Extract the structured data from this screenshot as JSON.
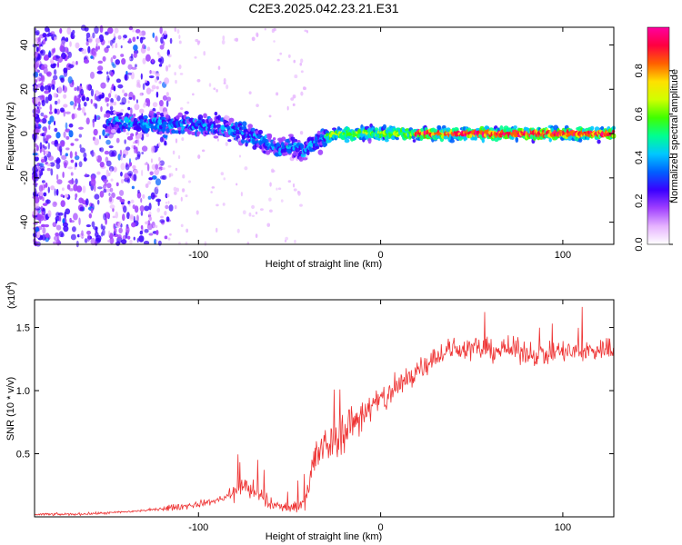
{
  "title": "C2E3.2025.042.23.21.E31",
  "chart_data": [
    {
      "type": "heatmap",
      "xlabel": "Height of straight line (km)",
      "ylabel": "Frequency (Hz)",
      "xlim": [
        -190,
        128
      ],
      "ylim": [
        -50,
        48
      ],
      "xticks": [
        "-100",
        "0",
        "100"
      ],
      "yticks": [
        "-40",
        "-20",
        "0",
        "20",
        "40"
      ],
      "colorbar": {
        "label": "Normalized spectral amplitude",
        "range": [
          0,
          1
        ],
        "ticks": [
          "0.0",
          "0.2",
          "0.4",
          "0.6",
          "0.8"
        ],
        "colors": [
          "#ffffff",
          "#e6b3ff",
          "#a040ff",
          "#3a00ff",
          "#0060ff",
          "#00c8ff",
          "#00ff90",
          "#40ff00",
          "#d0ff00",
          "#ffe000",
          "#ff6000",
          "#ff0040",
          "#ff00a0"
        ]
      },
      "ridge": [
        {
          "x": -140,
          "y": 5
        },
        {
          "x": -120,
          "y": 4
        },
        {
          "x": -100,
          "y": 4
        },
        {
          "x": -85,
          "y": 3
        },
        {
          "x": -75,
          "y": 0
        },
        {
          "x": -65,
          "y": -3
        },
        {
          "x": -55,
          "y": -7
        },
        {
          "x": -48,
          "y": -6
        },
        {
          "x": -42,
          "y": -8
        },
        {
          "x": -35,
          "y": -3
        },
        {
          "x": -25,
          "y": 0
        },
        {
          "x": 0,
          "y": 0
        },
        {
          "x": 50,
          "y": 0
        },
        {
          "x": 100,
          "y": 0
        },
        {
          "x": 128,
          "y": 0
        }
      ]
    },
    {
      "type": "line",
      "xlabel": "Height of straight line (km)",
      "ylabel": "SNR (10 * v/v)",
      "yscale_label": "(x10",
      "yscale_exp": "4",
      "xlim": [
        -190,
        128
      ],
      "ylim": [
        0,
        1.72
      ],
      "xticks": [
        "-100",
        "0",
        "100"
      ],
      "yticks": [
        "0.5",
        "1.0",
        "1.5"
      ],
      "series": [
        {
          "color": "#ee3333",
          "x": [
            -190,
            -170,
            -150,
            -130,
            -110,
            -100,
            -90,
            -80,
            -75,
            -70,
            -65,
            -60,
            -55,
            -50,
            -45,
            -40,
            -38,
            -35,
            -30,
            -25,
            -20,
            -15,
            -10,
            -5,
            0,
            5,
            10,
            15,
            20,
            25,
            30,
            35,
            40,
            50,
            60,
            70,
            80,
            90,
            100,
            110,
            120,
            128
          ],
          "y": [
            0.02,
            0.02,
            0.03,
            0.05,
            0.08,
            0.1,
            0.13,
            0.18,
            0.25,
            0.2,
            0.15,
            0.1,
            0.08,
            0.07,
            0.08,
            0.2,
            0.35,
            0.5,
            0.55,
            0.62,
            0.68,
            0.75,
            0.82,
            0.87,
            0.92,
            0.97,
            1.03,
            1.1,
            1.17,
            1.22,
            1.27,
            1.3,
            1.33,
            1.34,
            1.32,
            1.33,
            1.3,
            1.29,
            1.31,
            1.3,
            1.33,
            1.32
          ]
        }
      ]
    }
  ]
}
